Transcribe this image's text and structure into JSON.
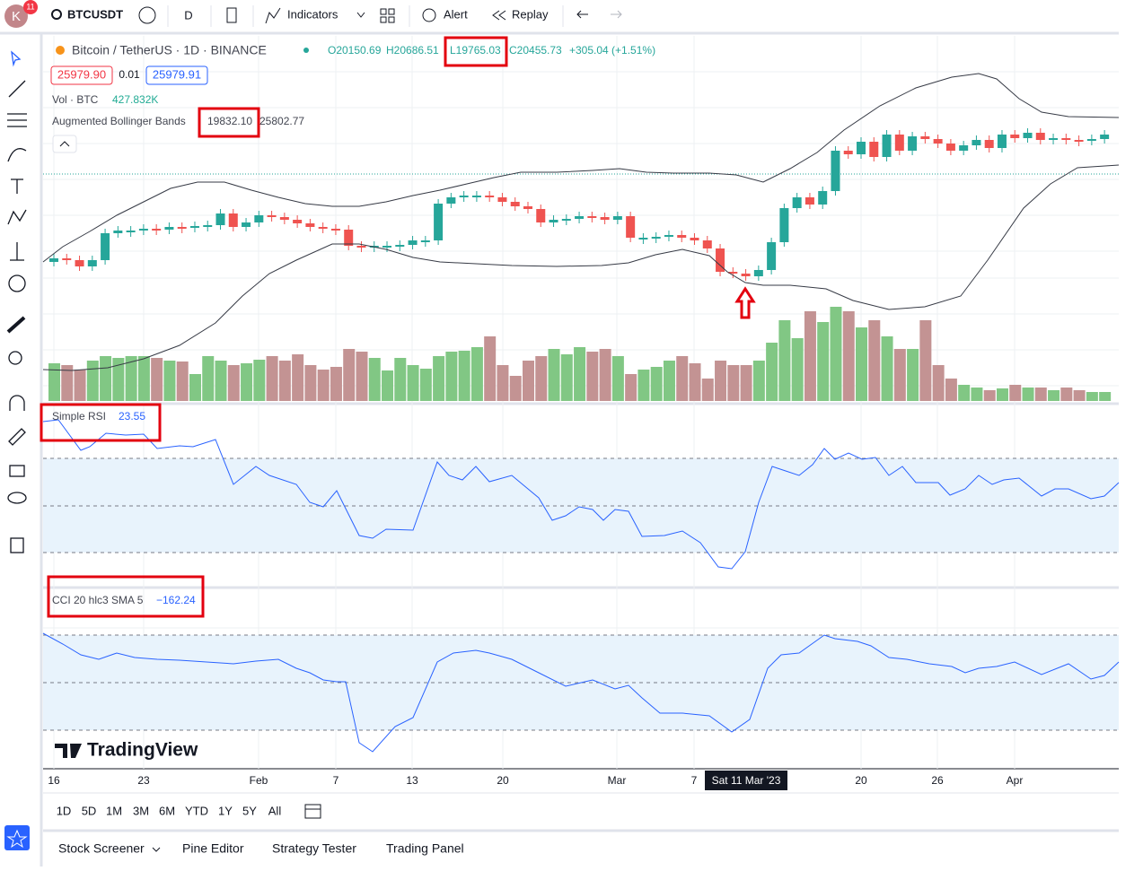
{
  "topbar": {
    "avatar": "K",
    "badge": "11",
    "symbol": "BTCUSDT",
    "interval": "D",
    "indicators": "Indicators",
    "alert": "Alert",
    "replay": "Replay"
  },
  "legend": {
    "title": "Bitcoin / TetherUS · 1D · BINANCE",
    "open": "O20150.69",
    "high": "H20686.51",
    "low": "L19765.03",
    "close": "C20455.73",
    "change": "+305.04 (+1.51%)",
    "sell": "25979.90",
    "spread": "0.01",
    "buy": "25979.91"
  },
  "indicators": [
    {
      "name": "Vol · BTC",
      "values": [
        "427.832K"
      ]
    },
    {
      "name": "Augmented Bollinger Bands",
      "values": [
        "19832.10",
        "25802.77"
      ]
    },
    {
      "name": "Simple RSI",
      "values": [
        "23.55"
      ]
    },
    {
      "name": "CCI 20 hlc3 SMA 5",
      "values": [
        "−162.24"
      ]
    }
  ],
  "watermark": "TradingView",
  "time_axis": [
    "16",
    "23",
    "Feb",
    "7",
    "13",
    "20",
    "Mar",
    "7",
    "20",
    "26",
    "Apr"
  ],
  "crosshair_date": "Sat 11 Mar '23",
  "ranges": [
    "1D",
    "5D",
    "1M",
    "3M",
    "6M",
    "YTD",
    "1Y",
    "5Y",
    "All"
  ],
  "bottom_tabs": [
    "Stock Screener",
    "Pine Editor",
    "Strategy Tester",
    "Trading Panel"
  ]
}
